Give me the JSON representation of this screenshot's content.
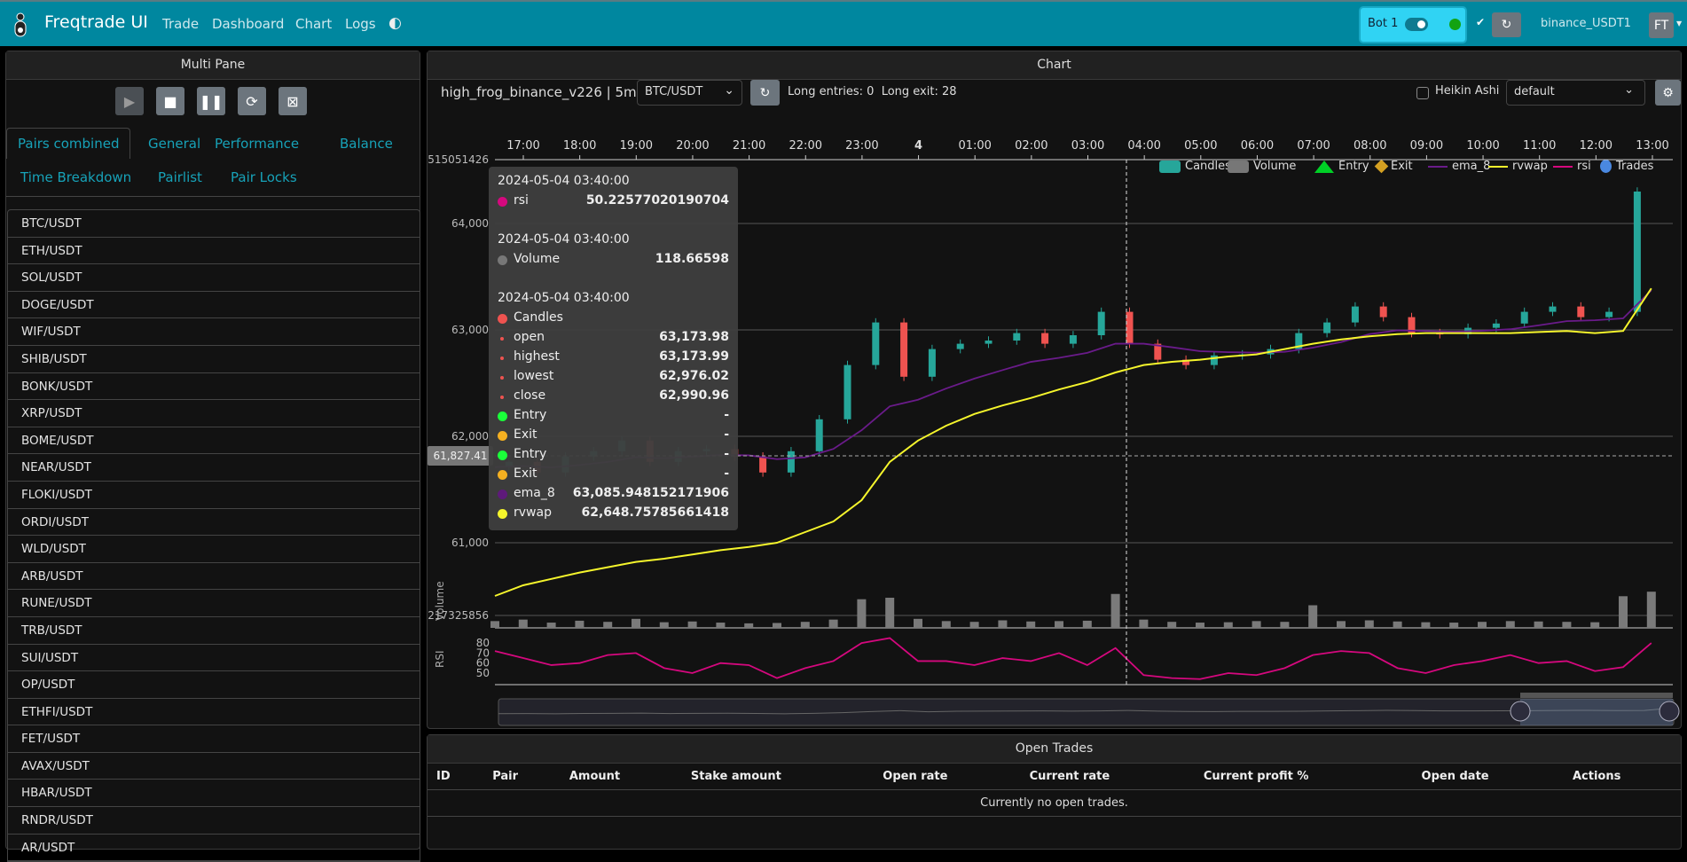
{
  "navbar": {
    "brand": "Freqtrade UI",
    "links": [
      "Trade",
      "Dashboard",
      "Chart",
      "Logs"
    ],
    "bot_name": "Bot 1",
    "exchange": "binance_USDT1",
    "user_initials": "FT",
    "bot_status_color": "#12a312"
  },
  "left_panel": {
    "title": "Multi Pane",
    "controls": [
      "play-icon",
      "stop-icon",
      "pause-icon",
      "reload-icon",
      "close-all-icon"
    ],
    "tabs": [
      "Pairs combined",
      "General",
      "Performance",
      "Balance",
      "Time Breakdown",
      "Pairlist",
      "Pair Locks"
    ],
    "active_tab": "Pairs combined",
    "pairs": [
      "BTC/USDT",
      "ETH/USDT",
      "SOL/USDT",
      "DOGE/USDT",
      "WIF/USDT",
      "SHIB/USDT",
      "BONK/USDT",
      "XRP/USDT",
      "BOME/USDT",
      "NEAR/USDT",
      "FLOKI/USDT",
      "ORDI/USDT",
      "WLD/USDT",
      "ARB/USDT",
      "RUNE/USDT",
      "TRB/USDT",
      "SUI/USDT",
      "OP/USDT",
      "ETHFI/USDT",
      "FET/USDT",
      "AVAX/USDT",
      "HBAR/USDT",
      "RNDR/USDT",
      "AR/USDT"
    ]
  },
  "chart_panel": {
    "title": "Chart",
    "strategy": "high_frog_binance_v226 | 5m",
    "pair": "BTC/USDT",
    "signals": "Long entries: 0  Long exit: 28",
    "heikin_ashi_label": "Heikin Ashi",
    "heikin_ashi": false,
    "plot_config": "default",
    "legend": [
      {
        "name": "Candles",
        "color": "#26a69a"
      },
      {
        "name": "Volume",
        "color": "#777777"
      },
      {
        "name": "Entry",
        "color": "#00d026"
      },
      {
        "name": "Exit",
        "color": "#d4a022"
      },
      {
        "name": "ema_8",
        "color": "#6a1b8a"
      },
      {
        "name": "rvwap",
        "color": "#f5f52c"
      },
      {
        "name": "rsi",
        "color": "#d5087e"
      },
      {
        "name": "Trades",
        "color": "#4a88e0"
      }
    ],
    "tooltip": {
      "sections": [
        {
          "time": "2024-05-04 03:40:00",
          "items": [
            {
              "label": "rsi",
              "value": "50.22577020190704",
              "color": "#d5087e"
            }
          ]
        },
        {
          "time": "2024-05-04 03:40:00",
          "items": [
            {
              "label": "Volume",
              "value": "118.66598",
              "color": "#777777"
            }
          ]
        },
        {
          "time": "2024-05-04 03:40:00",
          "items": [
            {
              "label": "Candles",
              "value": "",
              "color": "#ef5350"
            },
            {
              "label": "open",
              "value": "63,173.98",
              "sub": true
            },
            {
              "label": "highest",
              "value": "63,173.99",
              "sub": true
            },
            {
              "label": "lowest",
              "value": "62,976.02",
              "sub": true
            },
            {
              "label": "close",
              "value": "62,990.96",
              "sub": true
            },
            {
              "label": "Entry",
              "value": "-",
              "color": "#1aff3a"
            },
            {
              "label": "Exit",
              "value": "-",
              "color": "#f5b021"
            },
            {
              "label": "Entry",
              "value": "-",
              "color": "#1aff3a"
            },
            {
              "label": "Exit",
              "value": "-",
              "color": "#f5b021"
            },
            {
              "label": "ema_8",
              "value": "63,085.948152171906",
              "color": "#5e1a7a"
            },
            {
              "label": "rvwap",
              "value": "62,648.75785661418",
              "color": "#f5f52c"
            }
          ]
        }
      ]
    },
    "crosshair_price": "61,827.41"
  },
  "chart_data": {
    "type": "candlestick",
    "x_ticks": [
      "17:00",
      "18:00",
      "19:00",
      "20:00",
      "21:00",
      "22:00",
      "23:00",
      "4",
      "01:00",
      "02:00",
      "03:00",
      "04:00",
      "05:00",
      "06:00",
      "07:00",
      "08:00",
      "09:00",
      "10:00",
      "11:00",
      "12:00",
      "13:00"
    ],
    "y_ticks": [
      "64,000",
      "63,000",
      "62,000",
      "61,000"
    ],
    "y_top_label": "515051426",
    "volume_axis_label": "Volume",
    "volume_tick": "217325856",
    "rsi_axis_label": "RSI",
    "rsi_ticks": [
      "80",
      "70",
      "60",
      "50"
    ],
    "x": [
      "16:30",
      "17:00",
      "17:30",
      "18:00",
      "18:30",
      "19:00",
      "19:30",
      "20:00",
      "20:30",
      "21:00",
      "21:30",
      "22:00",
      "22:30",
      "23:00",
      "23:30",
      "00:00",
      "00:30",
      "01:00",
      "01:30",
      "02:00",
      "02:30",
      "03:00",
      "03:30",
      "04:00",
      "04:30",
      "05:00",
      "05:30",
      "06:00",
      "06:30",
      "07:00",
      "07:30",
      "08:00",
      "08:30",
      "09:00",
      "09:30",
      "10:00",
      "10:30",
      "11:00",
      "11:30",
      "12:00",
      "12:30",
      "13:00"
    ],
    "close": [
      61710,
      61760,
      61660,
      61810,
      61860,
      61960,
      61760,
      61860,
      61880,
      61810,
      61660,
      61860,
      62160,
      62670,
      63070,
      62560,
      62820,
      62870,
      62900,
      62970,
      62870,
      62950,
      63170,
      62870,
      62720,
      62670,
      62760,
      62770,
      62820,
      62970,
      63070,
      63220,
      63120,
      62970,
      62960,
      63020,
      63060,
      63170,
      63220,
      63120,
      63170,
      64300
    ],
    "rvwap": [
      60500,
      60600,
      60660,
      60720,
      60770,
      60820,
      60850,
      60890,
      60930,
      60960,
      61000,
      61100,
      61200,
      61400,
      61760,
      61960,
      62100,
      62210,
      62290,
      62360,
      62440,
      62510,
      62600,
      62670,
      62700,
      62720,
      62750,
      62770,
      62820,
      62870,
      62910,
      62940,
      62960,
      62970,
      62970,
      62970,
      62970,
      62980,
      62990,
      62970,
      62990,
      63390
    ],
    "rsi": [
      72,
      65,
      58,
      60,
      68,
      70,
      55,
      50,
      60,
      58,
      45,
      55,
      62,
      80,
      85,
      62,
      62,
      58,
      65,
      62,
      70,
      58,
      75,
      48,
      45,
      44,
      50,
      48,
      55,
      68,
      72,
      70,
      55,
      50,
      58,
      62,
      68,
      60,
      62,
      52,
      56,
      80
    ],
    "volume": [
      90,
      110,
      70,
      95,
      80,
      120,
      75,
      85,
      70,
      60,
      65,
      80,
      110,
      380,
      400,
      120,
      90,
      80,
      100,
      85,
      90,
      95,
      450,
      110,
      80,
      70,
      75,
      90,
      80,
      300,
      90,
      100,
      85,
      75,
      70,
      80,
      90,
      85,
      80,
      75,
      420,
      480
    ]
  },
  "open_trades": {
    "title": "Open Trades",
    "columns": [
      "ID",
      "Pair",
      "Amount",
      "Stake amount",
      "Open rate",
      "Current rate",
      "Current profit %",
      "Open date",
      "Actions"
    ],
    "empty_text": "Currently no open trades."
  }
}
